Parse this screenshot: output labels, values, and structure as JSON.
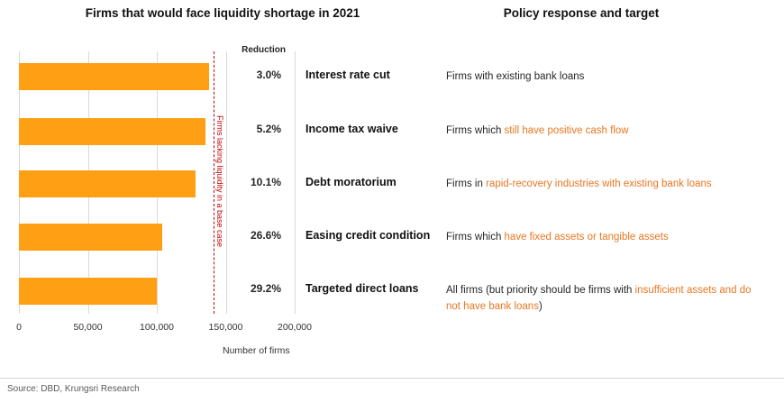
{
  "left_title": "Firms that would face liquidity shortage in 2021",
  "right_title": "Policy response and target",
  "reduction_header": "Reduction",
  "source": "Source: DBD, Krungsri Research",
  "colors": {
    "bar": "#FFA014",
    "highlight_text": "#E87722",
    "baseline": "#C00000",
    "gridline": "#D9D9D9"
  },
  "chart_data": {
    "type": "bar",
    "orientation": "horizontal",
    "title": "Firms that would face liquidity shortage in 2021",
    "xlabel": "Number of firms",
    "xlim": [
      0,
      200000
    ],
    "xticks": [
      "0",
      "50,000",
      "100,000",
      "150,000",
      "200,000"
    ],
    "xtick_values": [
      0,
      50000,
      100000,
      150000,
      200000
    ],
    "grid": true,
    "categories": [
      "Interest rate cut",
      "Income tax waive",
      "Debt moratorium",
      "Easing credit condition",
      "Targeted direct loans"
    ],
    "values": [
      138000,
      135000,
      128000,
      104000,
      100000
    ],
    "reductions_pct": [
      3.0,
      5.2,
      10.1,
      26.6,
      29.2
    ],
    "baseline_value": 141000,
    "baseline_label": "Firms lacking liquidity in a base case",
    "bar_color": "#FFA014"
  },
  "rows": [
    {
      "reduction": "3.0%",
      "policy": "Interest rate cut",
      "target_pre": "Firms with existing bank loans",
      "target_highlight": "",
      "target_post": ""
    },
    {
      "reduction": "5.2%",
      "policy": "Income tax waive",
      "target_pre": "Firms which ",
      "target_highlight": "still have positive cash flow",
      "target_post": ""
    },
    {
      "reduction": "10.1%",
      "policy": "Debt moratorium",
      "target_pre": "Firms in ",
      "target_highlight": "rapid-recovery industries with existing bank loans",
      "target_post": ""
    },
    {
      "reduction": "26.6%",
      "policy": "Easing credit condition",
      "target_pre": "Firms which ",
      "target_highlight": "have fixed assets or tangible assets",
      "target_post": ""
    },
    {
      "reduction": "29.2%",
      "policy": "Targeted direct loans",
      "target_pre": "All firms (but priority should be firms with ",
      "target_highlight": "insufficient assets and do not have bank loans",
      "target_post": ")"
    }
  ]
}
